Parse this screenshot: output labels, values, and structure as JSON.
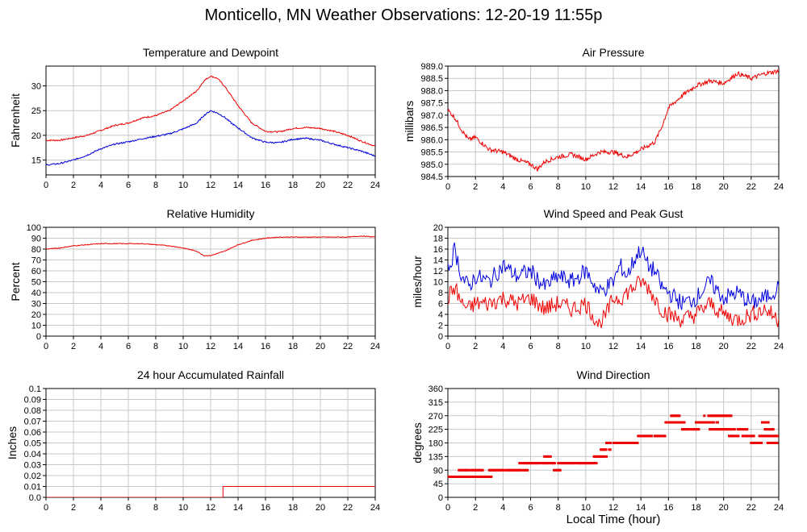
{
  "page": {
    "title": "Monticello, MN Weather Observations: 12-20-19 11:55p",
    "xlabel": "Local Time (hour)"
  },
  "colors": {
    "red": "#ee0000",
    "blue": "#0000dd",
    "grid": "#c8c8c8",
    "axis": "#000000"
  },
  "chart_data": [
    {
      "id": "temp",
      "type": "line",
      "title": "Temperature and Dewpoint",
      "ylabel": "Fahrenheit",
      "xlim": [
        0,
        24
      ],
      "ylim": [
        12,
        34
      ],
      "xticks": [
        0,
        2,
        4,
        6,
        8,
        10,
        12,
        14,
        16,
        18,
        20,
        22,
        24
      ],
      "yticks": [
        15,
        20,
        25,
        30
      ],
      "ytick_labels": [
        "15",
        "20",
        "25",
        "30"
      ],
      "grid": true,
      "series": [
        {
          "color": "red",
          "x": [
            0,
            1,
            2,
            3,
            4,
            5,
            6,
            7,
            8,
            9,
            10,
            11,
            11.5,
            12,
            12.5,
            13,
            13.5,
            14,
            15,
            16,
            17,
            18,
            19,
            20,
            21,
            22,
            23,
            24
          ],
          "y": [
            19,
            19,
            19.5,
            20,
            21,
            22,
            22.5,
            23.5,
            24,
            25,
            27,
            29,
            31,
            32,
            31.5,
            30,
            28,
            26,
            22.5,
            20.8,
            20.7,
            21.4,
            21.6,
            21.4,
            20.8,
            20,
            18.8,
            17.8
          ]
        },
        {
          "color": "blue",
          "x": [
            0,
            1,
            2,
            3,
            4,
            5,
            6,
            7,
            8,
            9,
            10,
            11,
            11.5,
            12,
            12.5,
            13,
            13.5,
            14,
            15,
            16,
            17,
            18,
            19,
            20,
            21,
            22,
            23,
            24
          ],
          "y": [
            14,
            14.3,
            15,
            16,
            17.3,
            18.2,
            18.7,
            19.3,
            19.8,
            20.3,
            21.3,
            22.5,
            24,
            25,
            24.5,
            23.7,
            22.5,
            21.5,
            19.5,
            18.6,
            18.5,
            19.2,
            19.4,
            19,
            18.2,
            17.5,
            16.8,
            15.8
          ]
        }
      ]
    },
    {
      "id": "pressure",
      "type": "line",
      "title": "Air Pressure",
      "ylabel": "millibars",
      "xlim": [
        0,
        24
      ],
      "ylim": [
        984.5,
        989.0
      ],
      "xticks": [
        0,
        2,
        4,
        6,
        8,
        10,
        12,
        14,
        16,
        18,
        20,
        22,
        24
      ],
      "yticks": [
        984.5,
        985.0,
        985.5,
        986.0,
        986.5,
        987.0,
        987.5,
        988.0,
        988.5,
        989.0
      ],
      "ytick_labels": [
        "984.5",
        "985.0",
        "985.5",
        "986.0",
        "986.5",
        "987.0",
        "987.5",
        "988.0",
        "988.5",
        "989.0"
      ],
      "grid": true,
      "series": [
        {
          "color": "red",
          "x": [
            0,
            0.5,
            1,
            1.5,
            2,
            3,
            4,
            5,
            6,
            6.5,
            7,
            8,
            9,
            10,
            11,
            12,
            13,
            14,
            15,
            15.5,
            16,
            17,
            18,
            19,
            20,
            21,
            22,
            23,
            24
          ],
          "y": [
            987.2,
            986.9,
            986.4,
            986.0,
            986.1,
            985.6,
            985.5,
            985.2,
            985.0,
            984.8,
            985.1,
            985.3,
            985.4,
            985.2,
            985.5,
            985.5,
            985.3,
            985.6,
            985.9,
            986.5,
            987.3,
            987.8,
            988.2,
            988.4,
            988.3,
            988.7,
            988.5,
            988.7,
            988.8
          ]
        }
      ]
    },
    {
      "id": "humidity",
      "type": "line",
      "title": "Relative Humidity",
      "ylabel": "Percent",
      "xlim": [
        0,
        24
      ],
      "ylim": [
        0,
        100
      ],
      "xticks": [
        0,
        2,
        4,
        6,
        8,
        10,
        12,
        14,
        16,
        18,
        20,
        22,
        24
      ],
      "yticks": [
        0,
        10,
        20,
        30,
        40,
        50,
        60,
        70,
        80,
        90,
        100
      ],
      "ytick_labels": [
        "0",
        "10",
        "20",
        "30",
        "40",
        "50",
        "60",
        "70",
        "80",
        "90",
        "100"
      ],
      "grid": true,
      "series": [
        {
          "color": "red",
          "x": [
            0,
            1,
            2,
            3,
            4,
            5,
            6,
            7,
            8,
            9,
            10,
            11,
            11.5,
            12,
            12.5,
            13,
            14,
            15,
            16,
            17,
            18,
            19,
            20,
            21,
            22,
            23,
            24
          ],
          "y": [
            80,
            81,
            83,
            84,
            85,
            85,
            85,
            85,
            84,
            83,
            81,
            78,
            74,
            74,
            76,
            78,
            84,
            88,
            90,
            91,
            91,
            91,
            91,
            91,
            91,
            92,
            91
          ]
        }
      ]
    },
    {
      "id": "wind",
      "type": "line",
      "title": "Wind Speed and Peak Gust",
      "ylabel": "miles/hour",
      "xlim": [
        0,
        24
      ],
      "ylim": [
        0,
        20
      ],
      "xticks": [
        0,
        2,
        4,
        6,
        8,
        10,
        12,
        14,
        16,
        18,
        20,
        22,
        24
      ],
      "yticks": [
        0,
        2,
        4,
        6,
        8,
        10,
        12,
        14,
        16,
        18,
        20
      ],
      "ytick_labels": [
        "0",
        "2",
        "4",
        "6",
        "8",
        "10",
        "12",
        "14",
        "16",
        "18",
        "20"
      ],
      "grid": true,
      "series": [
        {
          "color": "blue",
          "x": [
            0,
            0.5,
            1,
            1.5,
            2,
            3,
            4,
            5,
            6,
            7,
            8,
            9,
            10,
            11,
            11.5,
            12,
            12.5,
            13,
            13.5,
            14,
            14.5,
            15,
            15.5,
            16,
            17,
            18,
            19,
            20,
            21,
            22,
            23,
            24
          ],
          "y": [
            12,
            16,
            11,
            9,
            11,
            10,
            13,
            11,
            12,
            9,
            11,
            10,
            12,
            8,
            9,
            10,
            13,
            11,
            14,
            16,
            13,
            12,
            9,
            8,
            6,
            7,
            10,
            7,
            8,
            6,
            7,
            9
          ]
        },
        {
          "color": "red",
          "x": [
            0,
            0.5,
            1,
            1.5,
            2,
            3,
            4,
            5,
            6,
            7,
            8,
            9,
            10,
            11,
            11.5,
            12,
            12.5,
            13,
            13.5,
            14,
            14.5,
            15,
            15.5,
            16,
            17,
            18,
            19,
            20,
            21,
            22,
            23,
            24
          ],
          "y": [
            7,
            9,
            6,
            5,
            6,
            6,
            7,
            6,
            7,
            5,
            6,
            5,
            6,
            2,
            4,
            7,
            7,
            8,
            9,
            10,
            9,
            7,
            5,
            4,
            3,
            4,
            6,
            4,
            3,
            4,
            5,
            3
          ]
        }
      ]
    },
    {
      "id": "rain",
      "type": "line",
      "title": "24 hour Accumulated Rainfall",
      "ylabel": "Inches",
      "xlim": [
        0,
        24
      ],
      "ylim": [
        0,
        0.1
      ],
      "xticks": [
        0,
        2,
        4,
        6,
        8,
        10,
        12,
        14,
        16,
        18,
        20,
        22,
        24
      ],
      "yticks": [
        0,
        0.01,
        0.02,
        0.03,
        0.04,
        0.05,
        0.06,
        0.07,
        0.08,
        0.09,
        0.1
      ],
      "ytick_labels": [
        "0.0",
        "0.01",
        "0.02",
        "0.03",
        "0.04",
        "0.05",
        "0.06",
        "0.07",
        "0.08",
        "0.09",
        "0.1"
      ],
      "grid": true,
      "series": [
        {
          "color": "red",
          "x": [
            0,
            12.9,
            12.9,
            24
          ],
          "y": [
            0,
            0,
            0.01,
            0.01
          ]
        }
      ]
    },
    {
      "id": "direction",
      "type": "scatter",
      "title": "Wind Direction",
      "ylabel": "degrees",
      "xlim": [
        0,
        24
      ],
      "ylim": [
        0,
        360
      ],
      "xticks": [
        0,
        2,
        4,
        6,
        8,
        10,
        12,
        14,
        16,
        18,
        20,
        22,
        24
      ],
      "yticks": [
        0,
        45,
        90,
        135,
        180,
        225,
        270,
        315,
        360
      ],
      "ytick_labels": [
        "0",
        "45",
        "90",
        "135",
        "180",
        "225",
        "270",
        "315",
        "360"
      ],
      "grid": true,
      "segments": [
        {
          "x0": 0,
          "x1": 3.2,
          "y": 68
        },
        {
          "x0": 0.8,
          "x1": 2.6,
          "y": 90
        },
        {
          "x0": 3.0,
          "x1": 5.8,
          "y": 90
        },
        {
          "x0": 5.2,
          "x1": 7.8,
          "y": 113
        },
        {
          "x0": 7.0,
          "x1": 7.6,
          "y": 135
        },
        {
          "x0": 7.7,
          "x1": 8.2,
          "y": 90
        },
        {
          "x0": 8.0,
          "x1": 10.8,
          "y": 113
        },
        {
          "x0": 10.6,
          "x1": 11.5,
          "y": 135
        },
        {
          "x0": 11.5,
          "x1": 13.8,
          "y": 180
        },
        {
          "x0": 11.1,
          "x1": 11.8,
          "y": 158
        },
        {
          "x0": 13.8,
          "x1": 15.8,
          "y": 203
        },
        {
          "x0": 15.8,
          "x1": 17.2,
          "y": 248
        },
        {
          "x0": 16.2,
          "x1": 16.8,
          "y": 270
        },
        {
          "x0": 17.0,
          "x1": 18.2,
          "y": 225
        },
        {
          "x0": 18.0,
          "x1": 19.6,
          "y": 248
        },
        {
          "x0": 18.6,
          "x1": 20.6,
          "y": 270
        },
        {
          "x0": 19.0,
          "x1": 21.8,
          "y": 225
        },
        {
          "x0": 20.4,
          "x1": 22.2,
          "y": 203
        },
        {
          "x0": 22.0,
          "x1": 22.8,
          "y": 180
        },
        {
          "x0": 22.6,
          "x1": 24.0,
          "y": 203
        },
        {
          "x0": 23.0,
          "x1": 23.6,
          "y": 225
        },
        {
          "x0": 23.2,
          "x1": 24.0,
          "y": 180
        },
        {
          "x0": 22.8,
          "x1": 23.3,
          "y": 248
        }
      ]
    }
  ]
}
